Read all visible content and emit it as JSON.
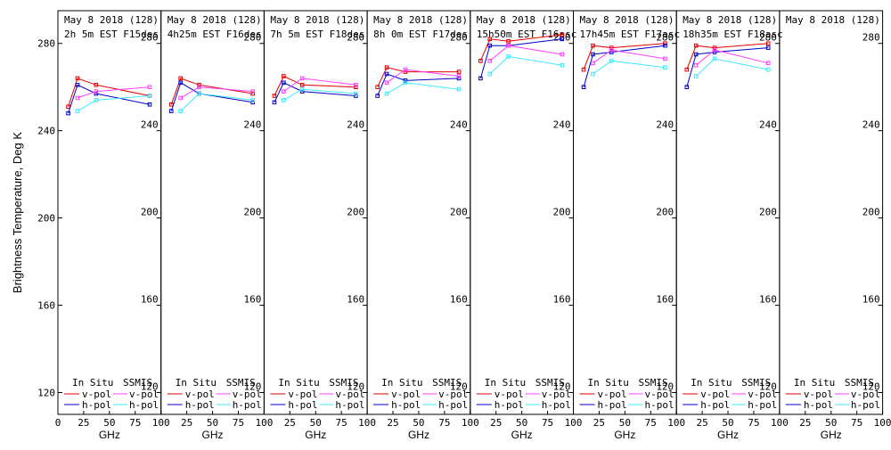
{
  "colors": {
    "insitu_vpol": "#e00000",
    "insitu_hpol": "#0000c8",
    "ssmis_vpol": "#ff40ff",
    "ssmis_hpol": "#40e8ff",
    "axes": "#000000"
  },
  "chart_data": {
    "type": "line",
    "ylabel": "Brightness Temperature, Deg K",
    "xlabel": "GHz",
    "ylim": [
      110,
      295
    ],
    "xlim": [
      0,
      100
    ],
    "yticks": [
      120,
      160,
      200,
      240,
      280
    ],
    "xticks": [
      0,
      25,
      50,
      75,
      100
    ],
    "legend": {
      "insitu_header": "In Situ",
      "ssmis_header": "SSMIS",
      "vpol_label": "v-pol",
      "hpol_label": "h-pol"
    },
    "panels": [
      {
        "title1": "May 8 2018 (128)",
        "title2": "2h 5m  EST F15des",
        "series": [
          {
            "name": "In Situ v-pol",
            "x": [
              10,
              19,
              37,
              89
            ],
            "y": [
              251,
              264,
              261,
              256
            ]
          },
          {
            "name": "In Situ h-pol",
            "x": [
              10,
              19,
              37,
              89
            ],
            "y": [
              248,
              261,
              257,
              252
            ]
          },
          {
            "name": "SSMIS v-pol",
            "x": [
              19,
              37,
              89
            ],
            "y": [
              255,
              258,
              260
            ]
          },
          {
            "name": "SSMIS h-pol",
            "x": [
              19,
              37,
              89
            ],
            "y": [
              249,
              254,
              256
            ]
          }
        ]
      },
      {
        "title1": "May 8 2018 (128)",
        "title2": "4h25m  EST F16des",
        "series": [
          {
            "name": "In Situ v-pol",
            "x": [
              10,
              19,
              37,
              89
            ],
            "y": [
              252,
              264,
              261,
              257
            ]
          },
          {
            "name": "In Situ h-pol",
            "x": [
              10,
              19,
              37,
              89
            ],
            "y": [
              249,
              262,
              257,
              253
            ]
          },
          {
            "name": "SSMIS v-pol",
            "x": [
              19,
              37,
              89
            ],
            "y": [
              255,
              260,
              258
            ]
          },
          {
            "name": "SSMIS h-pol",
            "x": [
              19,
              37,
              89
            ],
            "y": [
              249,
              257,
              254
            ]
          }
        ]
      },
      {
        "title1": "May 8 2018 (128)",
        "title2": "7h 5m  EST F18des",
        "series": [
          {
            "name": "In Situ v-pol",
            "x": [
              10,
              19,
              37,
              89
            ],
            "y": [
              256,
              265,
              261,
              260
            ]
          },
          {
            "name": "In Situ h-pol",
            "x": [
              10,
              19,
              37,
              89
            ],
            "y": [
              253,
              262,
              258,
              256
            ]
          },
          {
            "name": "SSMIS v-pol",
            "x": [
              19,
              37,
              89
            ],
            "y": [
              258,
              264,
              261
            ]
          },
          {
            "name": "SSMIS h-pol",
            "x": [
              19,
              37,
              89
            ],
            "y": [
              254,
              259,
              257
            ]
          }
        ]
      },
      {
        "title1": "May 8 2018 (128)",
        "title2": "8h 0m  EST F17des",
        "series": [
          {
            "name": "In Situ v-pol",
            "x": [
              10,
              19,
              37,
              89
            ],
            "y": [
              260,
              269,
              267,
              267
            ]
          },
          {
            "name": "In Situ h-pol",
            "x": [
              10,
              19,
              37,
              89
            ],
            "y": [
              256,
              266,
              263,
              264
            ]
          },
          {
            "name": "SSMIS v-pol",
            "x": [
              19,
              37,
              89
            ],
            "y": [
              262,
              268,
              265
            ]
          },
          {
            "name": "SSMIS h-pol",
            "x": [
              19,
              37,
              89
            ],
            "y": [
              257,
              262,
              259
            ]
          }
        ]
      },
      {
        "title1": "May 8 2018 (128)",
        "title2": "15h50m  EST F16asc",
        "series": [
          {
            "name": "In Situ v-pol",
            "x": [
              10,
              19,
              37,
              89
            ],
            "y": [
              272,
              282,
              281,
              284
            ]
          },
          {
            "name": "In Situ h-pol",
            "x": [
              10,
              19,
              37,
              89
            ],
            "y": [
              264,
              279,
              279,
              282
            ]
          },
          {
            "name": "SSMIS v-pol",
            "x": [
              19,
              37,
              89
            ],
            "y": [
              272,
              279,
              275
            ]
          },
          {
            "name": "SSMIS h-pol",
            "x": [
              19,
              37,
              89
            ],
            "y": [
              266,
              274,
              270
            ]
          }
        ]
      },
      {
        "title1": "May 8 2018 (128)",
        "title2": "17h45m  EST F17asc",
        "series": [
          {
            "name": "In Situ v-pol",
            "x": [
              10,
              19,
              37,
              89
            ],
            "y": [
              268,
              279,
              278,
              280
            ]
          },
          {
            "name": "In Situ h-pol",
            "x": [
              10,
              19,
              37,
              89
            ],
            "y": [
              260,
              275,
              276,
              279
            ]
          },
          {
            "name": "SSMIS v-pol",
            "x": [
              19,
              37,
              89
            ],
            "y": [
              271,
              277,
              273
            ]
          },
          {
            "name": "SSMIS h-pol",
            "x": [
              19,
              37,
              89
            ],
            "y": [
              266,
              272,
              269
            ]
          }
        ]
      },
      {
        "title1": "May 8 2018 (128)",
        "title2": "18h35m  EST F18asc",
        "series": [
          {
            "name": "In Situ v-pol",
            "x": [
              10,
              19,
              37,
              89
            ],
            "y": [
              268,
              279,
              278,
              280
            ]
          },
          {
            "name": "In Situ h-pol",
            "x": [
              10,
              19,
              37,
              89
            ],
            "y": [
              260,
              275,
              276,
              278
            ]
          },
          {
            "name": "SSMIS v-pol",
            "x": [
              19,
              37,
              89
            ],
            "y": [
              270,
              277,
              271
            ]
          },
          {
            "name": "SSMIS h-pol",
            "x": [
              19,
              37,
              89
            ],
            "y": [
              265,
              273,
              268
            ]
          }
        ]
      },
      {
        "title1": "May 8 2018 (128)",
        "title2": "",
        "series": []
      }
    ]
  }
}
